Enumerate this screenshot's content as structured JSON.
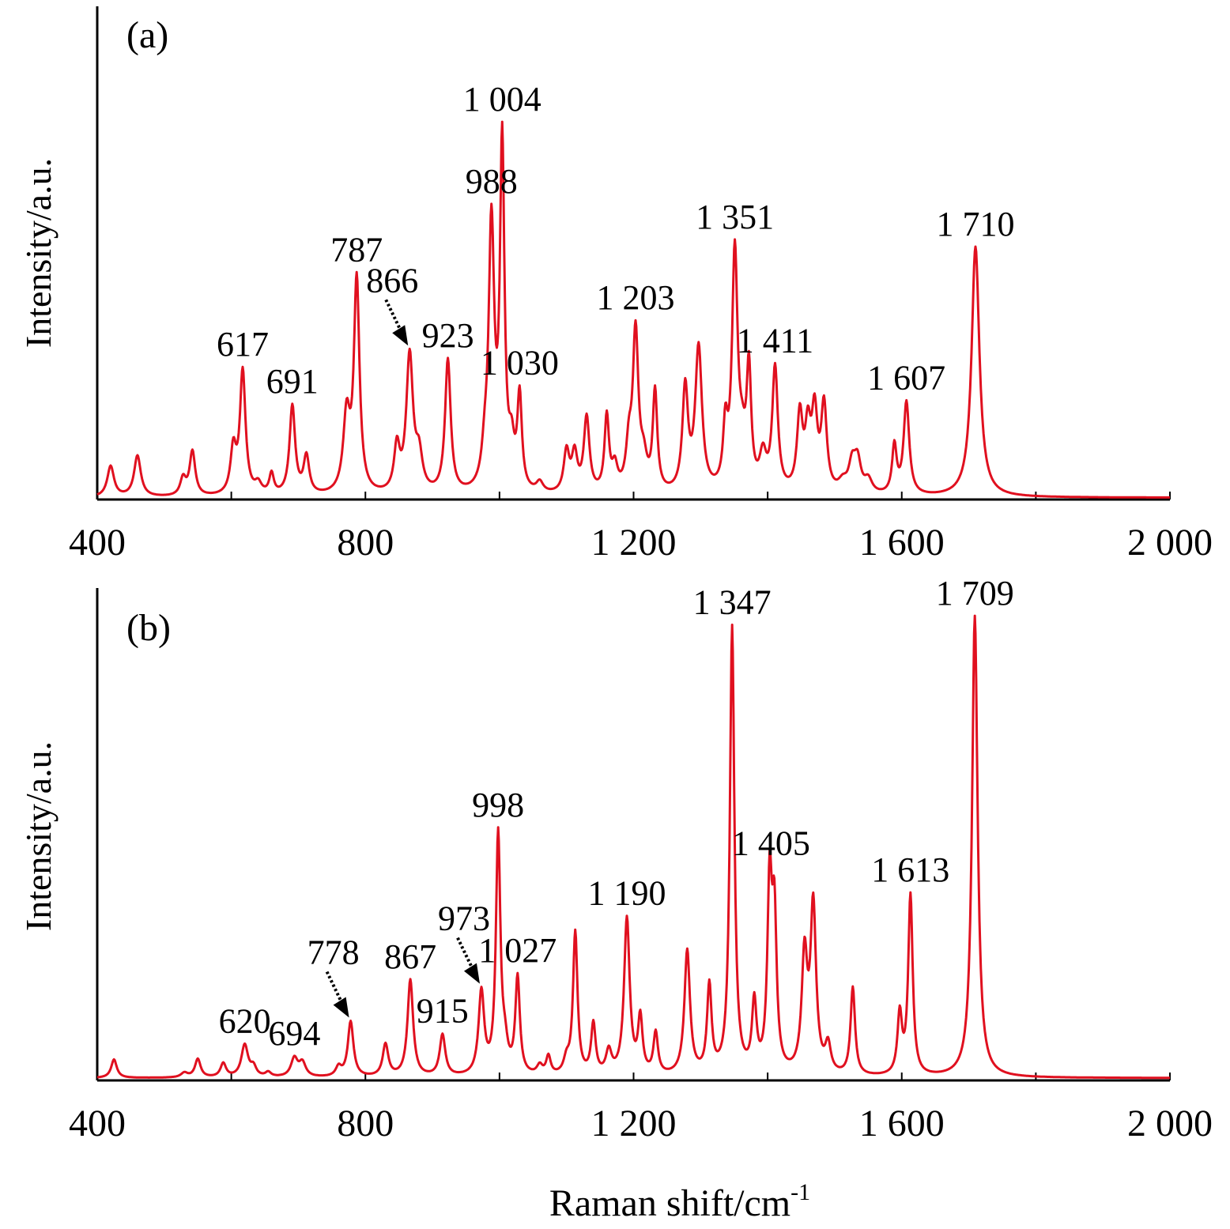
{
  "figure": {
    "xlabel": "Raman shift/cm",
    "xlabel_sup": "-1",
    "line_color": "#e0101f"
  },
  "chart_data": [
    {
      "type": "line",
      "panel_label": "(a)",
      "ylabel": "Intensity/a.u.",
      "xlim": [
        400,
        2000
      ],
      "ylim": [
        0,
        1
      ],
      "xticks": [
        400,
        800,
        1200,
        1600,
        2000
      ],
      "xtick_labels": [
        "400",
        "800",
        "1 200",
        "1 600",
        "2 000"
      ],
      "baseline": 0.005,
      "peaks": [
        {
          "x": 420,
          "h": 0.09,
          "w": 6
        },
        {
          "x": 460,
          "h": 0.12,
          "w": 6
        },
        {
          "x": 528,
          "h": 0.05,
          "w": 5
        },
        {
          "x": 542,
          "h": 0.13,
          "w": 5
        },
        {
          "x": 603,
          "h": 0.13,
          "w": 5
        },
        {
          "x": 617,
          "h": 0.36,
          "w": 5
        },
        {
          "x": 640,
          "h": 0.03,
          "w": 6
        },
        {
          "x": 660,
          "h": 0.06,
          "w": 4
        },
        {
          "x": 691,
          "h": 0.26,
          "w": 5
        },
        {
          "x": 712,
          "h": 0.11,
          "w": 5
        },
        {
          "x": 772,
          "h": 0.22,
          "w": 6
        },
        {
          "x": 787,
          "h": 0.62,
          "w": 5
        },
        {
          "x": 847,
          "h": 0.13,
          "w": 5
        },
        {
          "x": 866,
          "h": 0.4,
          "w": 6
        },
        {
          "x": 880,
          "h": 0.1,
          "w": 6
        },
        {
          "x": 923,
          "h": 0.39,
          "w": 5
        },
        {
          "x": 978,
          "h": 0.08,
          "w": 5
        },
        {
          "x": 988,
          "h": 0.77,
          "w": 5
        },
        {
          "x": 1004,
          "h": 1.0,
          "w": 4
        },
        {
          "x": 1018,
          "h": 0.11,
          "w": 5
        },
        {
          "x": 1030,
          "h": 0.27,
          "w": 4
        },
        {
          "x": 1060,
          "h": 0.03,
          "w": 6
        },
        {
          "x": 1100,
          "h": 0.12,
          "w": 5
        },
        {
          "x": 1112,
          "h": 0.11,
          "w": 5
        },
        {
          "x": 1130,
          "h": 0.22,
          "w": 5
        },
        {
          "x": 1160,
          "h": 0.22,
          "w": 4
        },
        {
          "x": 1172,
          "h": 0.07,
          "w": 5
        },
        {
          "x": 1193,
          "h": 0.12,
          "w": 5
        },
        {
          "x": 1203,
          "h": 0.46,
          "w": 5
        },
        {
          "x": 1215,
          "h": 0.08,
          "w": 6
        },
        {
          "x": 1232,
          "h": 0.29,
          "w": 4
        },
        {
          "x": 1277,
          "h": 0.3,
          "w": 5
        },
        {
          "x": 1297,
          "h": 0.42,
          "w": 6
        },
        {
          "x": 1337,
          "h": 0.17,
          "w": 4
        },
        {
          "x": 1351,
          "h": 0.69,
          "w": 5
        },
        {
          "x": 1362,
          "h": 0.1,
          "w": 6
        },
        {
          "x": 1372,
          "h": 0.34,
          "w": 4
        },
        {
          "x": 1393,
          "h": 0.1,
          "w": 6
        },
        {
          "x": 1411,
          "h": 0.36,
          "w": 5
        },
        {
          "x": 1448,
          "h": 0.22,
          "w": 5
        },
        {
          "x": 1460,
          "h": 0.17,
          "w": 5
        },
        {
          "x": 1470,
          "h": 0.22,
          "w": 5
        },
        {
          "x": 1484,
          "h": 0.25,
          "w": 5
        },
        {
          "x": 1512,
          "h": 0.03,
          "w": 8
        },
        {
          "x": 1526,
          "h": 0.08,
          "w": 6
        },
        {
          "x": 1534,
          "h": 0.09,
          "w": 6
        },
        {
          "x": 1550,
          "h": 0.04,
          "w": 7
        },
        {
          "x": 1589,
          "h": 0.14,
          "w": 4
        },
        {
          "x": 1607,
          "h": 0.27,
          "w": 5
        },
        {
          "x": 1710,
          "h": 0.73,
          "w": 7
        }
      ],
      "peak_labels": [
        {
          "x": 617,
          "text": "617",
          "arrow": false
        },
        {
          "x": 691,
          "text": "691",
          "arrow": false
        },
        {
          "x": 787,
          "text": "787",
          "arrow": false
        },
        {
          "x": 866,
          "text": "866",
          "arrow": true
        },
        {
          "x": 923,
          "text": "923",
          "arrow": false
        },
        {
          "x": 988,
          "text": "988",
          "arrow": false
        },
        {
          "x": 1004,
          "text": "1 004",
          "arrow": false
        },
        {
          "x": 1030,
          "text": "1 030",
          "arrow": false
        },
        {
          "x": 1203,
          "text": "1 203",
          "arrow": false
        },
        {
          "x": 1351,
          "text": "1 351",
          "arrow": false
        },
        {
          "x": 1411,
          "text": "1 411",
          "arrow": false
        },
        {
          "x": 1607,
          "text": "1 607",
          "arrow": false
        },
        {
          "x": 1710,
          "text": "1 710",
          "arrow": false
        }
      ]
    },
    {
      "type": "line",
      "panel_label": "(b)",
      "ylabel": "Intensity/a.u.",
      "xlim": [
        400,
        2000
      ],
      "ylim": [
        0,
        1
      ],
      "xticks": [
        400,
        800,
        1200,
        1600,
        2000
      ],
      "xtick_labels": [
        "400",
        "800",
        "1 200",
        "1 600",
        "2 000"
      ],
      "baseline": 0.005,
      "peaks": [
        {
          "x": 425,
          "h": 0.04,
          "w": 5
        },
        {
          "x": 530,
          "h": 0.01,
          "w": 6
        },
        {
          "x": 550,
          "h": 0.04,
          "w": 5
        },
        {
          "x": 588,
          "h": 0.03,
          "w": 5
        },
        {
          "x": 620,
          "h": 0.07,
          "w": 6
        },
        {
          "x": 633,
          "h": 0.02,
          "w": 5
        },
        {
          "x": 655,
          "h": 0.01,
          "w": 5
        },
        {
          "x": 694,
          "h": 0.04,
          "w": 6
        },
        {
          "x": 706,
          "h": 0.03,
          "w": 6
        },
        {
          "x": 760,
          "h": 0.02,
          "w": 5
        },
        {
          "x": 778,
          "h": 0.12,
          "w": 5
        },
        {
          "x": 830,
          "h": 0.07,
          "w": 5
        },
        {
          "x": 867,
          "h": 0.21,
          "w": 5
        },
        {
          "x": 915,
          "h": 0.09,
          "w": 5
        },
        {
          "x": 973,
          "h": 0.18,
          "w": 5
        },
        {
          "x": 998,
          "h": 0.52,
          "w": 4
        },
        {
          "x": 1008,
          "h": 0.05,
          "w": 5
        },
        {
          "x": 1027,
          "h": 0.21,
          "w": 4
        },
        {
          "x": 1060,
          "h": 0.02,
          "w": 5
        },
        {
          "x": 1073,
          "h": 0.04,
          "w": 4
        },
        {
          "x": 1100,
          "h": 0.03,
          "w": 5
        },
        {
          "x": 1113,
          "h": 0.31,
          "w": 4
        },
        {
          "x": 1140,
          "h": 0.11,
          "w": 4
        },
        {
          "x": 1163,
          "h": 0.05,
          "w": 5
        },
        {
          "x": 1190,
          "h": 0.34,
          "w": 5
        },
        {
          "x": 1210,
          "h": 0.12,
          "w": 4
        },
        {
          "x": 1233,
          "h": 0.09,
          "w": 4
        },
        {
          "x": 1280,
          "h": 0.27,
          "w": 5
        },
        {
          "x": 1313,
          "h": 0.19,
          "w": 4
        },
        {
          "x": 1347,
          "h": 0.97,
          "w": 4
        },
        {
          "x": 1380,
          "h": 0.15,
          "w": 4
        },
        {
          "x": 1403,
          "h": 0.4,
          "w": 4
        },
        {
          "x": 1410,
          "h": 0.32,
          "w": 4
        },
        {
          "x": 1455,
          "h": 0.25,
          "w": 5
        },
        {
          "x": 1468,
          "h": 0.36,
          "w": 5
        },
        {
          "x": 1490,
          "h": 0.06,
          "w": 5
        },
        {
          "x": 1527,
          "h": 0.19,
          "w": 4
        },
        {
          "x": 1597,
          "h": 0.13,
          "w": 4
        },
        {
          "x": 1613,
          "h": 0.39,
          "w": 4
        },
        {
          "x": 1709,
          "h": 1.0,
          "w": 5
        }
      ],
      "peak_labels": [
        {
          "x": 620,
          "text": "620",
          "arrow": false
        },
        {
          "x": 694,
          "text": "694",
          "arrow": false
        },
        {
          "x": 778,
          "text": "778",
          "arrow": true
        },
        {
          "x": 867,
          "text": "867",
          "arrow": false
        },
        {
          "x": 915,
          "text": "915",
          "arrow": false
        },
        {
          "x": 973,
          "text": "973",
          "arrow": true
        },
        {
          "x": 998,
          "text": "998",
          "arrow": false
        },
        {
          "x": 1027,
          "text": "1 027",
          "arrow": false
        },
        {
          "x": 1190,
          "text": "1 190",
          "arrow": false
        },
        {
          "x": 1347,
          "text": "1 347",
          "arrow": false
        },
        {
          "x": 1405,
          "text": "1 405",
          "arrow": false
        },
        {
          "x": 1613,
          "text": "1 613",
          "arrow": false
        },
        {
          "x": 1709,
          "text": "1 709",
          "arrow": false
        }
      ]
    }
  ]
}
